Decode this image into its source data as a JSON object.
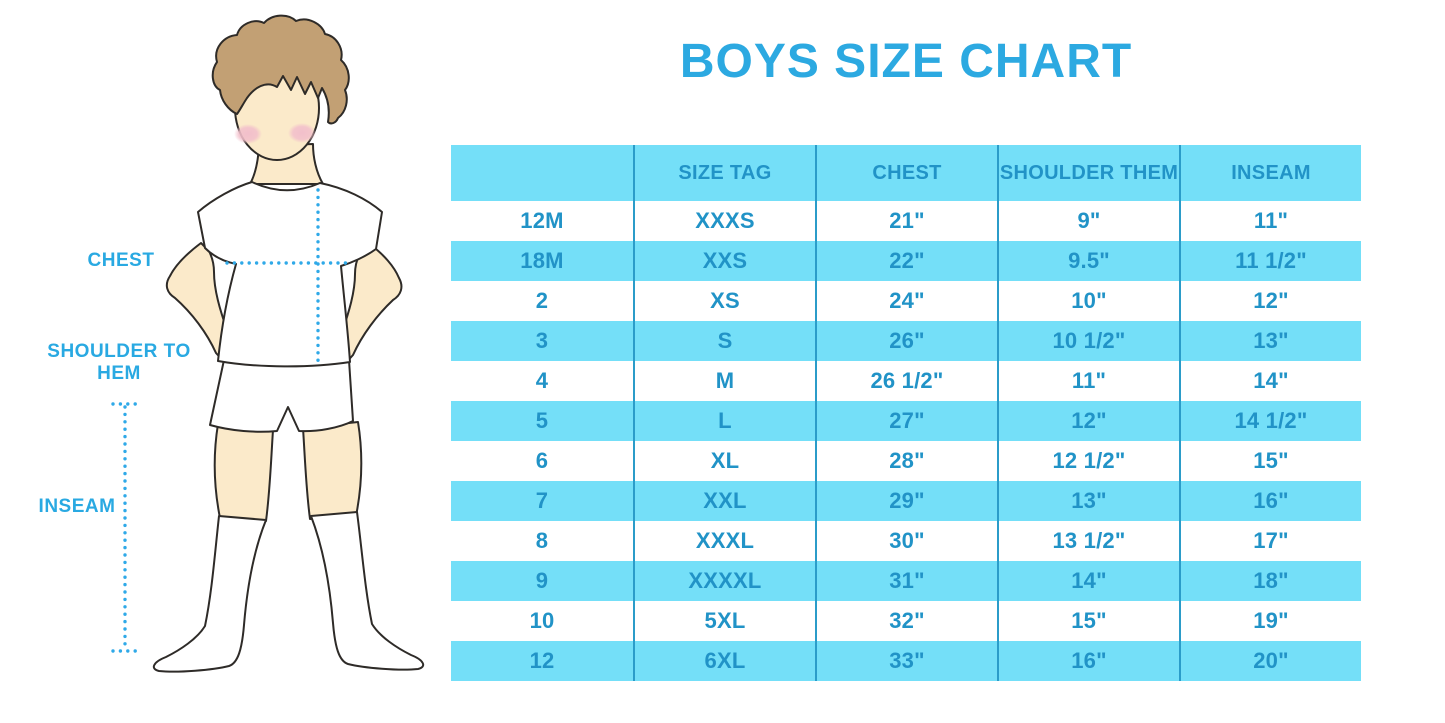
{
  "title": "BOYS SIZE CHART",
  "colors": {
    "title_blue": "#2CA9E1",
    "label_blue": "#29A9E2",
    "band_blue": "#74DFF8",
    "row_white": "#FFFFFF",
    "table_text": "#2193C7",
    "separator": "#2B9CC9",
    "dotted_blue": "#2FA9E8",
    "outline": "#2E2B28",
    "skin": "#FBEACA",
    "hair": "#C2A074",
    "cheek": "#F2BFCB",
    "garment_white": "#FFFFFF"
  },
  "figure": {
    "description": "cartoon boy in white t-shirt, shorts and knee socks with dotted measurement guides",
    "labels": {
      "chest": "CHEST",
      "shoulder_to_hem": "SHOULDER TO HEM",
      "inseam": "INSEAM"
    }
  },
  "chart_data": {
    "type": "table",
    "title": "BOYS SIZE CHART",
    "columns": [
      "",
      "SIZE TAG",
      "CHEST",
      "SHOULDER THEM",
      "INSEAM"
    ],
    "rows": [
      [
        "12M",
        "XXXS",
        "21\"",
        "9\"",
        "11\""
      ],
      [
        "18M",
        "XXS",
        "22\"",
        "9.5\"",
        "11 1/2\""
      ],
      [
        "2",
        "XS",
        "24\"",
        "10\"",
        "12\""
      ],
      [
        "3",
        "S",
        "26\"",
        "10 1/2\"",
        "13\""
      ],
      [
        "4",
        "M",
        "26 1/2\"",
        "11\"",
        "14\""
      ],
      [
        "5",
        "L",
        "27\"",
        "12\"",
        "14 1/2\""
      ],
      [
        "6",
        "XL",
        "28\"",
        "12 1/2\"",
        "15\""
      ],
      [
        "7",
        "XXL",
        "29\"",
        "13\"",
        "16\""
      ],
      [
        "8",
        "XXXL",
        "30\"",
        "13 1/2\"",
        "17\""
      ],
      [
        "9",
        "XXXXL",
        "31\"",
        "14\"",
        "18\""
      ],
      [
        "10",
        "5XL",
        "32\"",
        "15\"",
        "19\""
      ],
      [
        "12",
        "6XL",
        "33\"",
        "16\"",
        "20\""
      ]
    ],
    "layout": {
      "header_background": "#74DFF8",
      "row_striping": [
        "#FFFFFF",
        "#74DFF8"
      ],
      "column_separators": true,
      "horizontal_gridlines": false,
      "legend_position": "none",
      "grid": false
    }
  }
}
